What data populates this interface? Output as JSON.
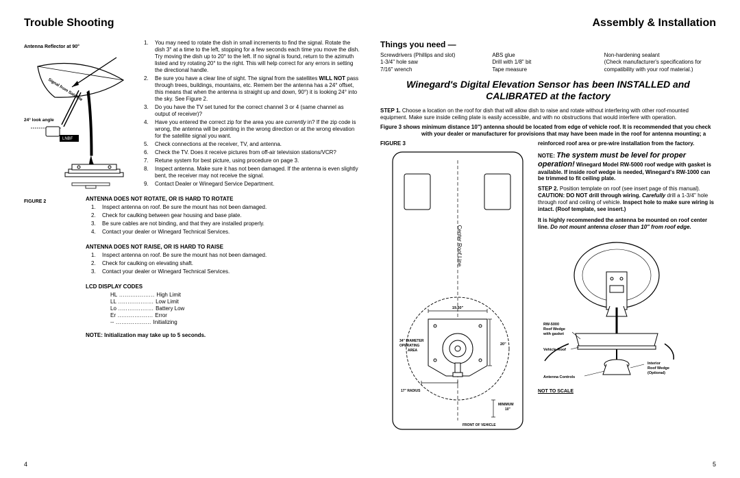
{
  "leftTitle": "Trouble Shooting",
  "rightTitle": "Assembly & Installation",
  "fig2": {
    "reflector": "Antenna Reflector at 90°",
    "signal": "Signal from Satellite",
    "look": "24° look angle",
    "lnbf": "LNBF",
    "label": "FIGURE 2"
  },
  "mainList": [
    {
      "n": "1.",
      "t": "You may need to rotate the dish in small increments to find the signal. Rotate the dish 3° at a time to the left, stopping for a few seconds each time you move the dish. Try moving the dish up to 20° to the left. If no signal is found, return to the azimuth listed and try rotating 20° to the right. This will help correct for any errors in setting the directional handle."
    },
    {
      "n": "2.",
      "t": "Be sure you have a clear line of sight. The signal from the satellites <b>WILL NOT</b> pass through trees, buildings, mountains, etc. Remem ber the antenna has a 24° offset, this means that when the antenna is straight up and down, 90°) it is looking 24° into the sky. See Figure 2."
    },
    {
      "n": "3.",
      "t": "Do you have the TV set tuned for the correct channel 3 or 4 (same channel as output of receiver)?"
    },
    {
      "n": "4.",
      "t": "Have you entered the correct zip for the area you are <i>currently</i> in? If the zip code is wrong, the antenna will be pointing in the wrong direction or at the wrong elevation for the satellite signal you want."
    },
    {
      "n": "5.",
      "t": "Check connections at the receiver, TV, and antenna."
    },
    {
      "n": "6.",
      "t": "Check the TV. Does it receive pictures from off-air television stations/VCR?"
    },
    {
      "n": "7.",
      "t": "Retune system for best picture, using procedure on page 3."
    },
    {
      "n": "8.",
      "t": "Inspect antenna. Make sure it has not been damaged. If the antenna is even slightly bent, the receiver may not receive the signal."
    },
    {
      "n": "9.",
      "t": "Contact Dealer or Winegard Service Department."
    }
  ],
  "rotateTitle": "ANTENNA DOES NOT ROTATE, OR IS HARD TO ROTATE",
  "rotateList": [
    {
      "n": "1.",
      "t": "Inspect antenna on roof. Be sure the mount has not been damaged."
    },
    {
      "n": "2.",
      "t": "Check for caulking between gear housing and base plate."
    },
    {
      "n": "3.",
      "t": "Be sure cables are not binding, and that they are installed properly."
    },
    {
      "n": "4.",
      "t": "Contact your dealer or Winegard Technical Services."
    }
  ],
  "raiseTitle": "ANTENNA DOES NOT RAISE, OR IS HARD TO RAISE",
  "raiseList": [
    {
      "n": "1.",
      "t": "Inspect antenna on roof. Be sure the mount has not been damaged."
    },
    {
      "n": "2.",
      "t": "Check for caulking on elevating shaft."
    },
    {
      "n": "3.",
      "t": "Contact your dealer or Winegard Technical Services."
    }
  ],
  "lcdTitle": "LCD DISPLAY CODES",
  "lcdCodes": [
    {
      "c": "HL",
      "d": "High Limit"
    },
    {
      "c": "LL",
      "d": "Low Limit"
    },
    {
      "c": "Lo",
      "d": "Battery Low"
    },
    {
      "c": "Er",
      "d": "Error"
    },
    {
      "c": "--",
      "d": "Initializing"
    }
  ],
  "initNote": "NOTE: Initialization may take up to 5 seconds.",
  "thingsTitle": "Things you need —",
  "needs": {
    "c1": [
      "Screwdrivers (Phillips and slot)",
      "1-3/4\" hole saw",
      "7/16\" wrench"
    ],
    "c2": [
      "ABS glue",
      "Drill with 1/8\" bit",
      "Tape measure"
    ],
    "c3": [
      "Non-hardening sealant",
      "(Check manufacturer's specifications for",
      "compatibility with your roof material.)"
    ]
  },
  "factoryNote": "Winegard's Digital Elevation Sensor has been INSTALLED and CALIBRATED at the factory",
  "step1": "<b>STEP 1.</b> Choose a location on the roof for dish that will allow dish to raise and rotate without interfering with other roof-mounted equipment. Make sure inside ceiling plate is easily accessible, and with no obstructions that would interfere with operation.",
  "step1b": "<b>Figure 3 shows minimum distance 10\") antenna should be located from edge of vehicle roof. It is recommended that you check with your dealer or manufacturer for provisions that may have been made in the roof for antenna mounting; a</b>",
  "fig3Label": "FIGURE 3",
  "reinforced": "reinforced roof area or pre-wire installation from the factory.",
  "levelNote": "NOTE: <i>The system must be level for proper operation!</i>",
  "wedgeText": "<b>Winegard Model RW-5000 roof wedge with gasket is available. If inside roof wedge is needed, Winegard's RW-1000 can be trimmed to fit ceiling plate.</b>",
  "step2": "<b>STEP 2.</b> Position template on roof (see insert page of this manual). <b>CAUTION: DO NOT drill through wiring.</b> <b><i>Carefully</i></b> drill a 1-3/4\" hole through roof and ceiling of vehicle. <b>Inspect hole to make sure wiring is intact. (Roof template, see insert.)</b>",
  "highlyRec": "It is highly recommended the antenna be mounted on roof center line. <i>Do not mount antenna closer than 10\" from roof edge.</i>",
  "roofLabels": {
    "center": "Center Roof Line",
    "diameter": "34\" DIAMETER OPERATING AREA",
    "radius": "17\" RADIUS",
    "width": "19.50\"",
    "side": "20\"",
    "min": "MINIMUM 10\"",
    "front": "FRONT OF VEHICLE"
  },
  "wedgeLabels": {
    "rw5000": "RW-5000 Roof Wedge with gasket",
    "vroof": "Vehicle Roof",
    "controls": "Antenna Controls",
    "interior": "Interior Roof Wedge (Optional)"
  },
  "notScale": "NOT TO SCALE",
  "leftPageNum": "4",
  "rightPageNum": "5"
}
